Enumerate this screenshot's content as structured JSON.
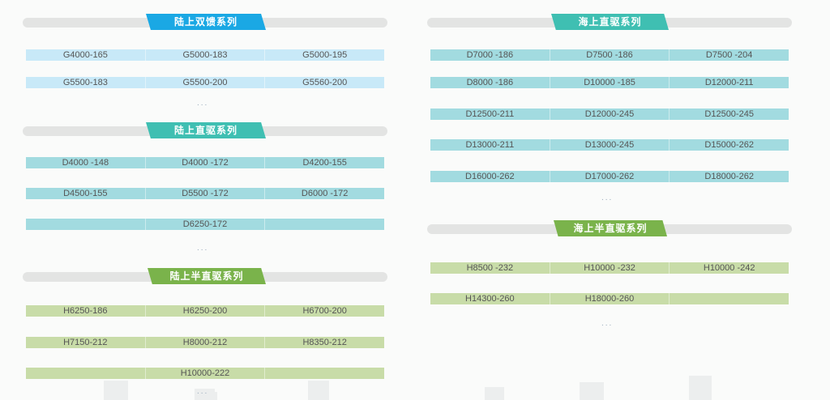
{
  "sections": [
    {
      "id": "land-dfig",
      "title": "陆上双馈系列",
      "header_color": "#1aa8e4",
      "row_color": "#c8e9f8",
      "rows": [
        [
          "G4000-165",
          "G5000-183",
          "G5000-195"
        ],
        [
          "G5500-183",
          "G5500-200",
          "G5560-200"
        ]
      ],
      "more": "..."
    },
    {
      "id": "land-direct",
      "title": "陆上直驱系列",
      "header_color": "#3fbfb2",
      "row_color": "#a2dbe0",
      "rows": [
        [
          "D4000 -148",
          "D4000 -172",
          "D4200-155"
        ],
        [
          "D4500-155",
          "D5500 -172",
          "D6000 -172"
        ],
        [
          "",
          "D6250-172",
          ""
        ]
      ],
      "more": "..."
    },
    {
      "id": "land-semi-direct",
      "title": "陆上半直驱系列",
      "header_color": "#7ab34b",
      "row_color": "#c8dca8",
      "rows": [
        [
          "H6250-186",
          "H6250-200",
          "H6700-200"
        ],
        [
          "H7150-212",
          "H8000-212",
          "H8350-212"
        ],
        [
          "",
          "H10000-222",
          ""
        ]
      ],
      "more": "..."
    },
    {
      "id": "offshore-direct",
      "title": "海上直驱系列",
      "header_color": "#3fbfb2",
      "row_color": "#a2dbe0",
      "rows": [
        [
          "D7000 -186",
          "D7500 -186",
          "D7500 -204"
        ],
        [
          "D8000 -186",
          "D10000 -185",
          "D12000-211"
        ],
        [
          "D12500-211",
          "D12000-245",
          "D12500-245"
        ],
        [
          "D13000-211",
          "D13000-245",
          "D15000-262"
        ],
        [
          "D16000-262",
          "D17000-262",
          "D18000-262"
        ]
      ],
      "more": "..."
    },
    {
      "id": "offshore-semi-direct",
      "title": "海上半直驱系列",
      "header_color": "#7ab34b",
      "row_color": "#c8dca8",
      "rows": [
        [
          "H8500 -232",
          "H10000 -232",
          "H10000 -242"
        ],
        [
          "H14300-260",
          "H18000-260",
          ""
        ]
      ],
      "more": "..."
    }
  ]
}
